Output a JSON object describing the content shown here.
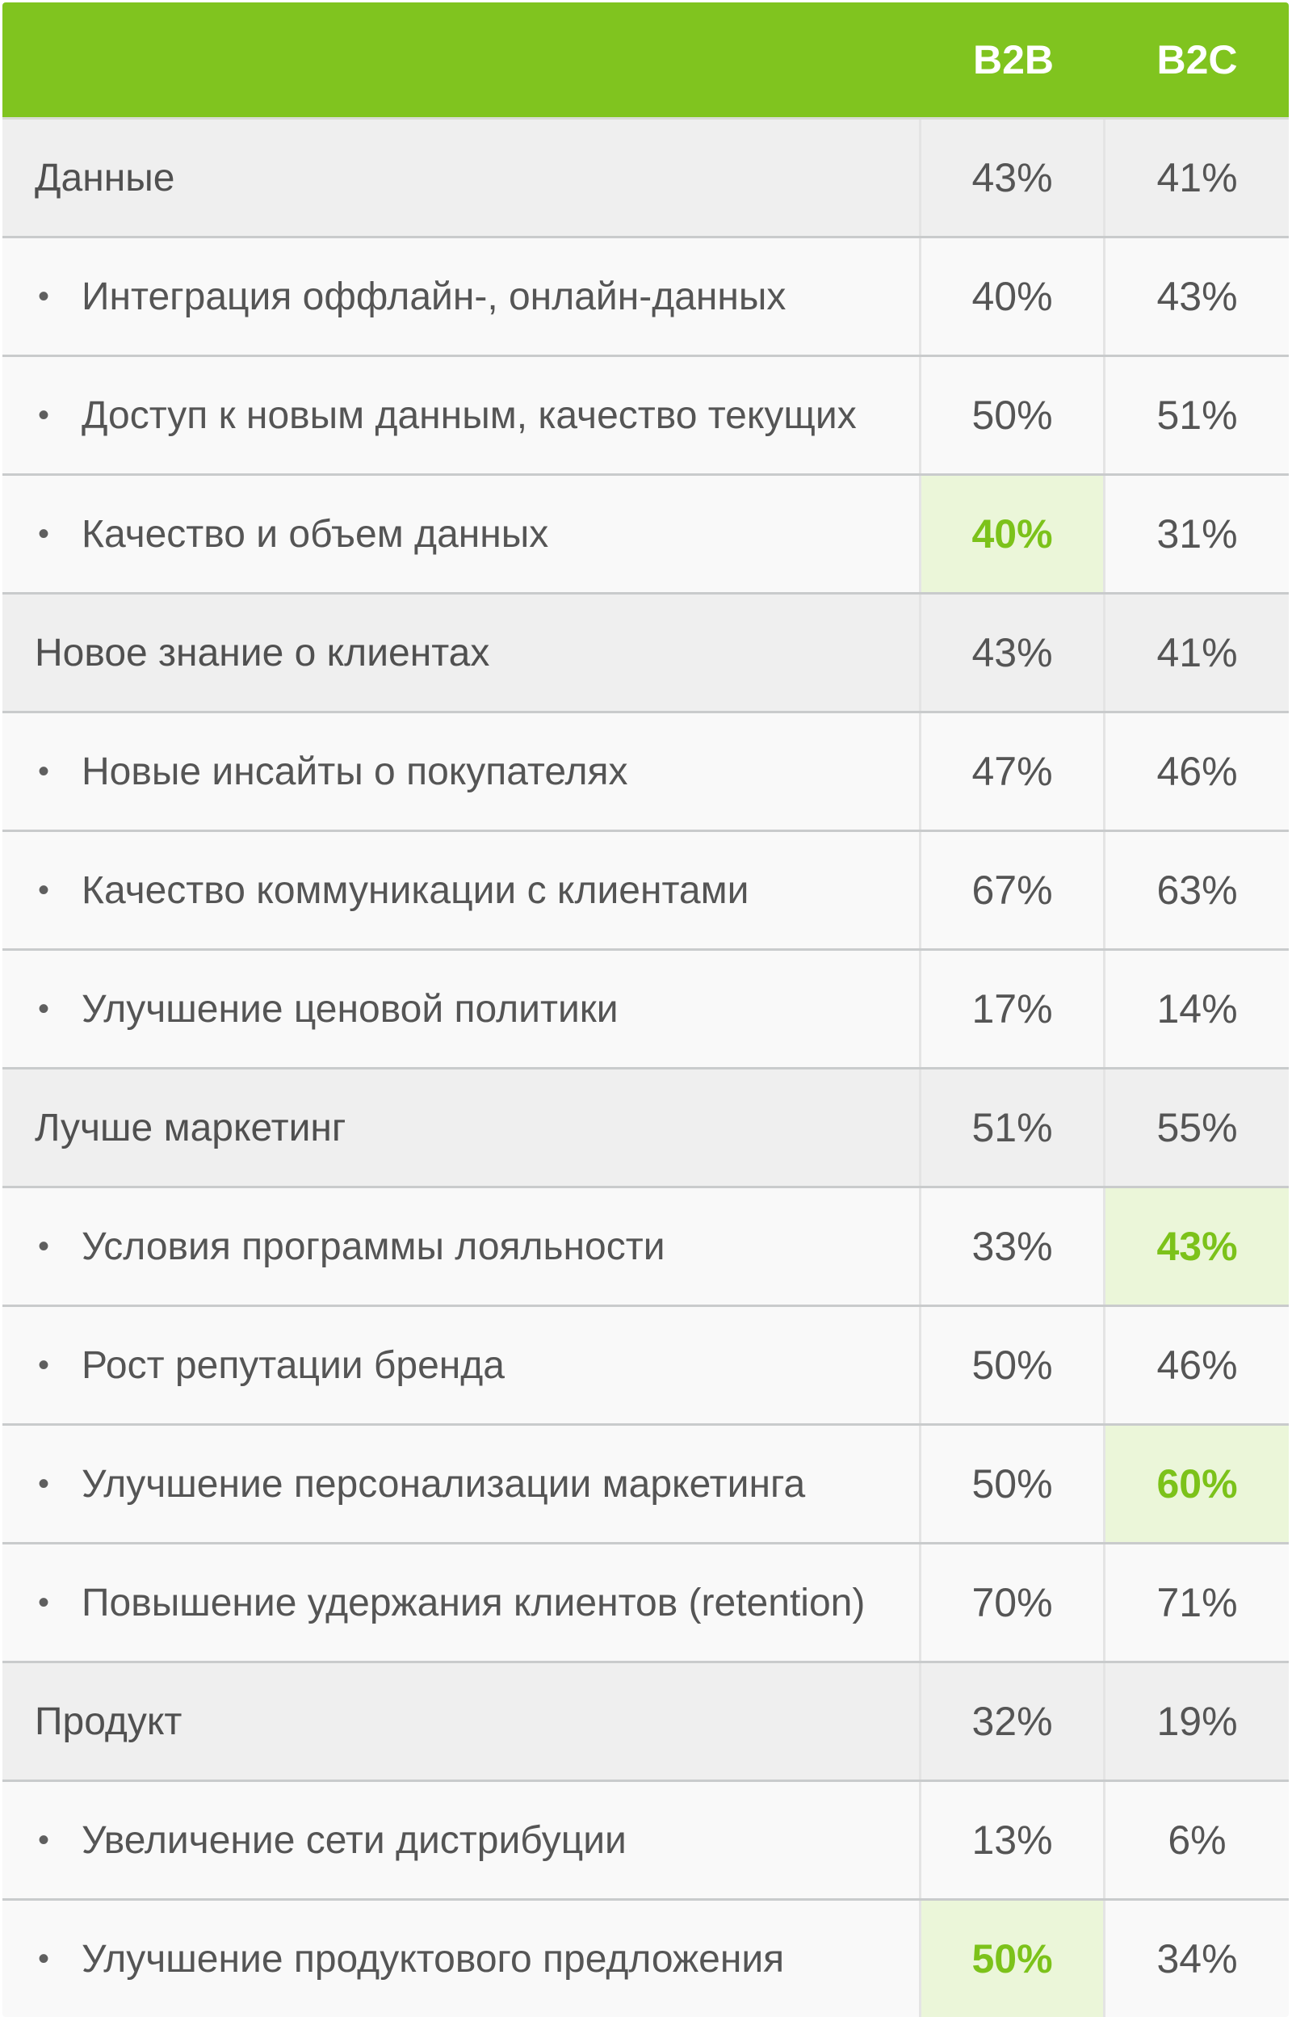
{
  "header": {
    "col_b2b": "B2B",
    "col_b2c": "B2C"
  },
  "colors": {
    "header_green": "#80c41f",
    "highlight_text": "#7cc21a",
    "highlight_bg": "#ebf6d9"
  },
  "rows": [
    {
      "type": "group",
      "label": "Данные",
      "b2b": "43%",
      "b2c": "41%"
    },
    {
      "type": "item",
      "label": "Интеграция оффлайн-, онлайн-данных",
      "b2b": "40%",
      "b2c": "43%"
    },
    {
      "type": "item",
      "label": "Доступ к новым данным, качество текущих",
      "b2b": "50%",
      "b2c": "51%"
    },
    {
      "type": "item",
      "label": "Качество и объем данных",
      "b2b": "40%",
      "b2c": "31%",
      "highlight": "b2b"
    },
    {
      "type": "group",
      "label": "Новое знание о клиентах",
      "b2b": "43%",
      "b2c": "41%"
    },
    {
      "type": "item",
      "label": "Новые инсайты о покупателях",
      "b2b": "47%",
      "b2c": "46%"
    },
    {
      "type": "item",
      "label": "Качество коммуникации с клиентами",
      "b2b": "67%",
      "b2c": "63%"
    },
    {
      "type": "item",
      "label": "Улучшение ценовой политики",
      "b2b": "17%",
      "b2c": "14%"
    },
    {
      "type": "group",
      "label": "Лучше маркетинг",
      "b2b": "51%",
      "b2c": "55%"
    },
    {
      "type": "item",
      "label": "Условия программы лояльности",
      "b2b": "33%",
      "b2c": "43%",
      "highlight": "b2c"
    },
    {
      "type": "item",
      "label": "Рост репутации бренда",
      "b2b": "50%",
      "b2c": "46%"
    },
    {
      "type": "item",
      "label": "Улучшение персонализации маркетинга",
      "b2b": "50%",
      "b2c": "60%",
      "highlight": "b2c"
    },
    {
      "type": "item",
      "label": "Повышение удержания клиентов (retention)",
      "b2b": "70%",
      "b2c": "71%"
    },
    {
      "type": "group",
      "label": "Продукт",
      "b2b": "32%",
      "b2c": "19%"
    },
    {
      "type": "item",
      "label": "Увеличение сети дистрибуции",
      "b2b": "13%",
      "b2c": "6%"
    },
    {
      "type": "item",
      "label": "Улучшение продуктового предложения",
      "b2b": "50%",
      "b2c": "34%",
      "highlight": "b2b"
    }
  ]
}
